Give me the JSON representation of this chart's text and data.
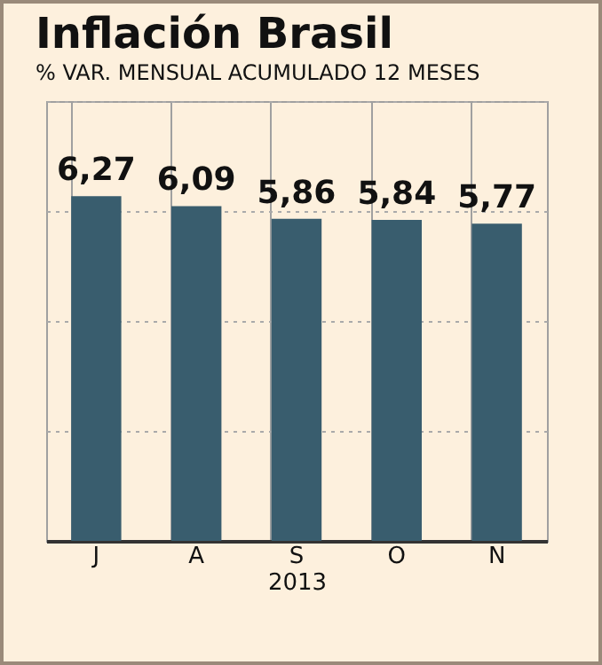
{
  "chart_data": {
    "type": "bar",
    "title": "Inflación Brasil",
    "subtitle": "% VAR. MENSUAL ACUMULADO 12 MESES",
    "xlabel": "2013",
    "categories": [
      "J",
      "A",
      "S",
      "O",
      "N"
    ],
    "values": [
      6.27,
      6.09,
      5.86,
      5.84,
      5.77
    ],
    "value_labels": [
      "6,27",
      "6,09",
      "5,86",
      "5,84",
      "5,77"
    ],
    "color": "#395d6e",
    "ylim": [
      0,
      8
    ],
    "yticks": [
      {
        "value": 0,
        "label": null
      },
      {
        "value": 2,
        "label": null
      },
      {
        "value": 4,
        "label": null
      },
      {
        "value": 6,
        "label": null
      },
      {
        "value": 8,
        "label": null
      }
    ],
    "grid": true,
    "tick_labels": "x"
  }
}
